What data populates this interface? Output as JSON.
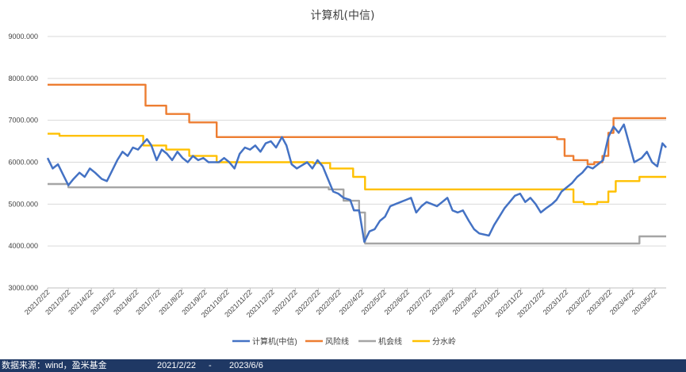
{
  "chart_data": {
    "type": "line",
    "title": "计算机(中信)",
    "xlabel": "",
    "ylabel": "",
    "ylim": [
      3000,
      9000
    ],
    "yticks": [
      "3000.000",
      "4000.000",
      "5000.000",
      "6000.000",
      "7000.000",
      "8000.000",
      "9000.000"
    ],
    "ytick_values": [
      3000,
      4000,
      5000,
      6000,
      7000,
      8000,
      9000
    ],
    "xlim": [
      "2021-02-22",
      "2023-06-06"
    ],
    "xticks": [
      "2021/2/22",
      "2021/3/22",
      "2021/4/22",
      "2021/5/22",
      "2021/6/22",
      "2021/7/22",
      "2021/8/22",
      "2021/9/22",
      "2021/10/22",
      "2021/11/22",
      "2021/12/22",
      "2022/1/22",
      "2022/2/22",
      "2022/3/22",
      "2022/4/22",
      "2022/5/22",
      "2022/6/22",
      "2022/7/22",
      "2022/8/22",
      "2022/9/22",
      "2022/10/22",
      "2022/11/22",
      "2022/12/22",
      "2023/1/22",
      "2023/2/22",
      "2023/3/22",
      "2023/4/22",
      "2023/5/22"
    ],
    "grid": "horizontal",
    "legend": "bottom",
    "colors": {
      "index": "#4472c4",
      "risk": "#ed7d31",
      "opportunity": "#a5a5a5",
      "watershed": "#ffc000"
    },
    "series": [
      {
        "name": "计算机(中信)",
        "key": "index",
        "points": [
          [
            "2021-02-22",
            6100
          ],
          [
            "2021-03-01",
            5850
          ],
          [
            "2021-03-08",
            5950
          ],
          [
            "2021-03-15",
            5700
          ],
          [
            "2021-03-22",
            5450
          ],
          [
            "2021-03-29",
            5600
          ],
          [
            "2021-04-06",
            5750
          ],
          [
            "2021-04-13",
            5650
          ],
          [
            "2021-04-20",
            5850
          ],
          [
            "2021-04-27",
            5750
          ],
          [
            "2021-05-06",
            5600
          ],
          [
            "2021-05-13",
            5550
          ],
          [
            "2021-05-20",
            5800
          ],
          [
            "2021-05-27",
            6050
          ],
          [
            "2021-06-03",
            6250
          ],
          [
            "2021-06-10",
            6150
          ],
          [
            "2021-06-17",
            6350
          ],
          [
            "2021-06-24",
            6300
          ],
          [
            "2021-07-01",
            6450
          ],
          [
            "2021-07-06",
            6550
          ],
          [
            "2021-07-12",
            6400
          ],
          [
            "2021-07-19",
            6050
          ],
          [
            "2021-07-26",
            6300
          ],
          [
            "2021-08-02",
            6200
          ],
          [
            "2021-08-09",
            6050
          ],
          [
            "2021-08-16",
            6250
          ],
          [
            "2021-08-23",
            6100
          ],
          [
            "2021-08-30",
            6000
          ],
          [
            "2021-09-06",
            6150
          ],
          [
            "2021-09-13",
            6050
          ],
          [
            "2021-09-20",
            6100
          ],
          [
            "2021-09-27",
            6000
          ],
          [
            "2021-10-11",
            6000
          ],
          [
            "2021-10-18",
            6100
          ],
          [
            "2021-10-25",
            6000
          ],
          [
            "2021-11-01",
            5850
          ],
          [
            "2021-11-08",
            6200
          ],
          [
            "2021-11-15",
            6350
          ],
          [
            "2021-11-22",
            6300
          ],
          [
            "2021-11-29",
            6400
          ],
          [
            "2021-12-06",
            6250
          ],
          [
            "2021-12-13",
            6450
          ],
          [
            "2021-12-20",
            6500
          ],
          [
            "2021-12-27",
            6350
          ],
          [
            "2022-01-04",
            6600
          ],
          [
            "2022-01-10",
            6400
          ],
          [
            "2022-01-17",
            5950
          ],
          [
            "2022-01-24",
            5850
          ],
          [
            "2022-02-07",
            6000
          ],
          [
            "2022-02-14",
            5850
          ],
          [
            "2022-02-21",
            6050
          ],
          [
            "2022-02-28",
            5900
          ],
          [
            "2022-03-07",
            5600
          ],
          [
            "2022-03-14",
            5300
          ],
          [
            "2022-03-21",
            5250
          ],
          [
            "2022-03-28",
            5150
          ],
          [
            "2022-04-06",
            5100
          ],
          [
            "2022-04-11",
            4850
          ],
          [
            "2022-04-18",
            4850
          ],
          [
            "2022-04-25",
            4100
          ],
          [
            "2022-05-02",
            4350
          ],
          [
            "2022-05-09",
            4400
          ],
          [
            "2022-05-16",
            4600
          ],
          [
            "2022-05-23",
            4700
          ],
          [
            "2022-05-30",
            4950
          ],
          [
            "2022-06-06",
            5000
          ],
          [
            "2022-06-13",
            5050
          ],
          [
            "2022-06-20",
            5100
          ],
          [
            "2022-06-27",
            5150
          ],
          [
            "2022-07-04",
            4800
          ],
          [
            "2022-07-11",
            4950
          ],
          [
            "2022-07-18",
            5050
          ],
          [
            "2022-07-25",
            5000
          ],
          [
            "2022-08-01",
            4950
          ],
          [
            "2022-08-08",
            5050
          ],
          [
            "2022-08-15",
            5150
          ],
          [
            "2022-08-22",
            4850
          ],
          [
            "2022-08-29",
            4800
          ],
          [
            "2022-09-05",
            4850
          ],
          [
            "2022-09-13",
            4600
          ],
          [
            "2022-09-20",
            4400
          ],
          [
            "2022-09-27",
            4300
          ],
          [
            "2022-10-10",
            4250
          ],
          [
            "2022-10-17",
            4500
          ],
          [
            "2022-10-24",
            4700
          ],
          [
            "2022-10-31",
            4900
          ],
          [
            "2022-11-07",
            5050
          ],
          [
            "2022-11-14",
            5200
          ],
          [
            "2022-11-21",
            5250
          ],
          [
            "2022-11-28",
            5050
          ],
          [
            "2022-12-05",
            5150
          ],
          [
            "2022-12-12",
            5000
          ],
          [
            "2022-12-19",
            4800
          ],
          [
            "2022-12-26",
            4900
          ],
          [
            "2023-01-03",
            5000
          ],
          [
            "2023-01-09",
            5100
          ],
          [
            "2023-01-16",
            5300
          ],
          [
            "2023-01-30",
            5500
          ],
          [
            "2023-02-06",
            5650
          ],
          [
            "2023-02-13",
            5750
          ],
          [
            "2023-02-20",
            5900
          ],
          [
            "2023-02-27",
            5850
          ],
          [
            "2023-03-06",
            5950
          ],
          [
            "2023-03-13",
            6050
          ],
          [
            "2023-03-20",
            6600
          ],
          [
            "2023-03-27",
            6850
          ],
          [
            "2023-04-03",
            6700
          ],
          [
            "2023-04-10",
            6900
          ],
          [
            "2023-04-17",
            6450
          ],
          [
            "2023-04-24",
            6000
          ],
          [
            "2023-05-04",
            6100
          ],
          [
            "2023-05-11",
            6250
          ],
          [
            "2023-05-18",
            6000
          ],
          [
            "2023-05-25",
            5900
          ],
          [
            "2023-06-01",
            6450
          ],
          [
            "2023-06-06",
            6350
          ]
        ]
      },
      {
        "name": "风险线",
        "key": "risk",
        "step": true,
        "points": [
          [
            "2021-02-22",
            7850
          ],
          [
            "2021-07-04",
            7350
          ],
          [
            "2021-08-01",
            7150
          ],
          [
            "2021-09-01",
            6950
          ],
          [
            "2021-10-08",
            6600
          ],
          [
            "2023-01-10",
            6550
          ],
          [
            "2023-01-20",
            6150
          ],
          [
            "2023-02-01",
            6050
          ],
          [
            "2023-02-20",
            5950
          ],
          [
            "2023-03-01",
            6000
          ],
          [
            "2023-03-12",
            6150
          ],
          [
            "2023-03-20",
            6700
          ],
          [
            "2023-03-27",
            7050
          ],
          [
            "2023-06-06",
            7050
          ]
        ]
      },
      {
        "name": "机会线",
        "key": "opportunity",
        "step": true,
        "points": [
          [
            "2021-02-22",
            5480
          ],
          [
            "2021-03-22",
            5400
          ],
          [
            "2022-03-08",
            5350
          ],
          [
            "2022-03-28",
            5080
          ],
          [
            "2022-04-18",
            4800
          ],
          [
            "2022-04-26",
            4060
          ],
          [
            "2023-05-01",
            4230
          ],
          [
            "2023-06-06",
            4230
          ]
        ]
      },
      {
        "name": "分水岭",
        "key": "watershed",
        "step": true,
        "points": [
          [
            "2021-02-22",
            6680
          ],
          [
            "2021-03-10",
            6630
          ],
          [
            "2021-07-01",
            6400
          ],
          [
            "2021-08-01",
            6300
          ],
          [
            "2021-09-01",
            6150
          ],
          [
            "2021-10-08",
            6000
          ],
          [
            "2022-02-15",
            5980
          ],
          [
            "2022-03-10",
            5850
          ],
          [
            "2022-04-10",
            5650
          ],
          [
            "2022-04-26",
            5350
          ],
          [
            "2023-01-15",
            5350
          ],
          [
            "2023-02-01",
            5050
          ],
          [
            "2023-02-15",
            5000
          ],
          [
            "2023-03-05",
            5050
          ],
          [
            "2023-03-20",
            5300
          ],
          [
            "2023-03-30",
            5550
          ],
          [
            "2023-05-01",
            5650
          ],
          [
            "2023-06-06",
            5650
          ]
        ]
      }
    ]
  },
  "footer": {
    "source": "数据来源：wind，盈米基金",
    "start": "2021/2/22",
    "dash": "-",
    "end": "2023/6/6"
  }
}
